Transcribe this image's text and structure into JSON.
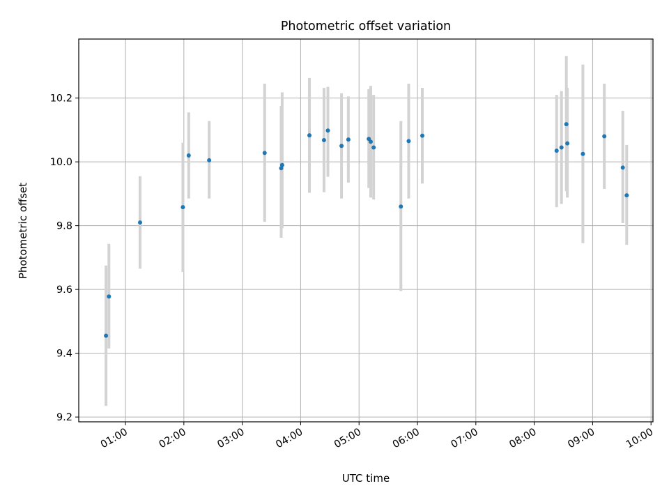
{
  "chart_data": {
    "type": "scatter",
    "title": "Photometric offset variation",
    "xlabel": "UTC time",
    "ylabel": "Photometric offset",
    "x_ticks": [
      "01:00",
      "02:00",
      "03:00",
      "04:00",
      "05:00",
      "06:00",
      "07:00",
      "08:00",
      "09:00",
      "10:00"
    ],
    "y_ticks": [
      "9.2",
      "9.4",
      "9.6",
      "9.8",
      "10.0",
      "10.2"
    ],
    "xlim": [
      "00:12",
      "10:02"
    ],
    "ylim": [
      9.185,
      10.385
    ],
    "grid": true,
    "colors": {
      "points": "#1f77b4",
      "errorbars": "#d3d3d3",
      "grid": "#b0b0b0"
    },
    "points": [
      {
        "x": "00:40",
        "y": 9.455,
        "lo": 9.235,
        "hi": 9.675
      },
      {
        "x": "00:43",
        "y": 9.578,
        "lo": 9.415,
        "hi": 9.743
      },
      {
        "x": "01:15",
        "y": 9.81,
        "lo": 9.665,
        "hi": 9.955
      },
      {
        "x": "01:59",
        "y": 9.858,
        "lo": 9.655,
        "hi": 10.06
      },
      {
        "x": "02:05",
        "y": 10.02,
        "lo": 9.885,
        "hi": 10.155
      },
      {
        "x": "02:26",
        "y": 10.005,
        "lo": 9.885,
        "hi": 10.128
      },
      {
        "x": "03:23",
        "y": 10.028,
        "lo": 9.812,
        "hi": 10.245
      },
      {
        "x": "03:40",
        "y": 9.98,
        "lo": 9.762,
        "hi": 10.175
      },
      {
        "x": "03:41",
        "y": 9.99,
        "lo": 9.792,
        "hi": 10.218
      },
      {
        "x": "04:09",
        "y": 10.083,
        "lo": 9.903,
        "hi": 10.263
      },
      {
        "x": "04:24",
        "y": 10.068,
        "lo": 9.905,
        "hi": 10.232
      },
      {
        "x": "04:28",
        "y": 10.098,
        "lo": 9.953,
        "hi": 10.235
      },
      {
        "x": "04:42",
        "y": 10.05,
        "lo": 9.885,
        "hi": 10.215
      },
      {
        "x": "04:49",
        "y": 10.07,
        "lo": 9.935,
        "hi": 10.205
      },
      {
        "x": "05:10",
        "y": 10.072,
        "lo": 9.918,
        "hi": 10.228
      },
      {
        "x": "05:12",
        "y": 10.063,
        "lo": 9.888,
        "hi": 10.238
      },
      {
        "x": "05:15",
        "y": 10.045,
        "lo": 9.882,
        "hi": 10.21
      },
      {
        "x": "05:43",
        "y": 9.86,
        "lo": 9.595,
        "hi": 10.128
      },
      {
        "x": "05:51",
        "y": 10.065,
        "lo": 9.885,
        "hi": 10.245
      },
      {
        "x": "06:05",
        "y": 10.082,
        "lo": 9.932,
        "hi": 10.232
      },
      {
        "x": "08:23",
        "y": 10.035,
        "lo": 9.858,
        "hi": 10.21
      },
      {
        "x": "08:28",
        "y": 10.045,
        "lo": 9.868,
        "hi": 10.222
      },
      {
        "x": "08:33",
        "y": 10.118,
        "lo": 9.908,
        "hi": 10.332
      },
      {
        "x": "08:34",
        "y": 10.058,
        "lo": 9.888,
        "hi": 10.232
      },
      {
        "x": "08:50",
        "y": 10.025,
        "lo": 9.745,
        "hi": 10.305
      },
      {
        "x": "09:12",
        "y": 10.08,
        "lo": 9.915,
        "hi": 10.245
      },
      {
        "x": "09:31",
        "y": 9.982,
        "lo": 9.808,
        "hi": 10.16
      },
      {
        "x": "09:35",
        "y": 9.895,
        "lo": 9.74,
        "hi": 10.053
      }
    ]
  }
}
